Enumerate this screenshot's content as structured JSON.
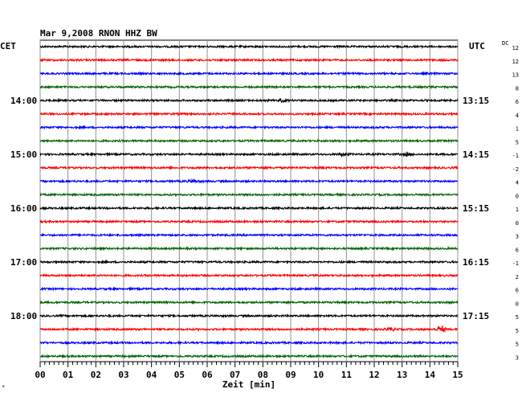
{
  "chart_data": {
    "type": "line",
    "title": "Mar 9,2008   RNON HHZ BW",
    "xlabel": "Zeit [min]",
    "left_timezone": "CET",
    "right_timezone": "UTC",
    "dc_header": "DC",
    "x_ticks": [
      "00",
      "01",
      "02",
      "03",
      "04",
      "05",
      "06",
      "07",
      "08",
      "09",
      "10",
      "11",
      "12",
      "13",
      "14",
      "15"
    ],
    "xlim": [
      0,
      15
    ],
    "trace_colors": [
      "#000000",
      "#ff0000",
      "#0000ff",
      "#006400"
    ],
    "hour_labels_left": [
      {
        "row": 4,
        "label": "14:00"
      },
      {
        "row": 8,
        "label": "15:00"
      },
      {
        "row": 12,
        "label": "16:00"
      },
      {
        "row": 16,
        "label": "17:00"
      },
      {
        "row": 20,
        "label": "18:00"
      }
    ],
    "hour_labels_right": [
      {
        "row": 4,
        "label": "13:15"
      },
      {
        "row": 8,
        "label": "14:15"
      },
      {
        "row": 12,
        "label": "15:15"
      },
      {
        "row": 16,
        "label": "16:15"
      },
      {
        "row": 20,
        "label": "17:15"
      }
    ],
    "dc_offsets": [
      "12",
      "12",
      "13",
      "8",
      "6",
      "4",
      "1",
      "5",
      "-1",
      "-2",
      "4",
      "0",
      "1",
      "0",
      "3",
      "6",
      "-1",
      "2",
      "6",
      "0",
      "5",
      "5",
      "5",
      "3"
    ],
    "events": [
      {
        "row": 4,
        "minute": 8.7,
        "amplitude": 1.6
      },
      {
        "row": 8,
        "minute": 10.9,
        "amplitude": 1.5
      },
      {
        "row": 8,
        "minute": 13.2,
        "amplitude": 1.8
      },
      {
        "row": 10,
        "minute": 5.5,
        "amplitude": 2.0
      },
      {
        "row": 21,
        "minute": 12.6,
        "amplitude": 2.2
      },
      {
        "row": 21,
        "minute": 14.4,
        "amplitude": 4.5
      }
    ]
  }
}
